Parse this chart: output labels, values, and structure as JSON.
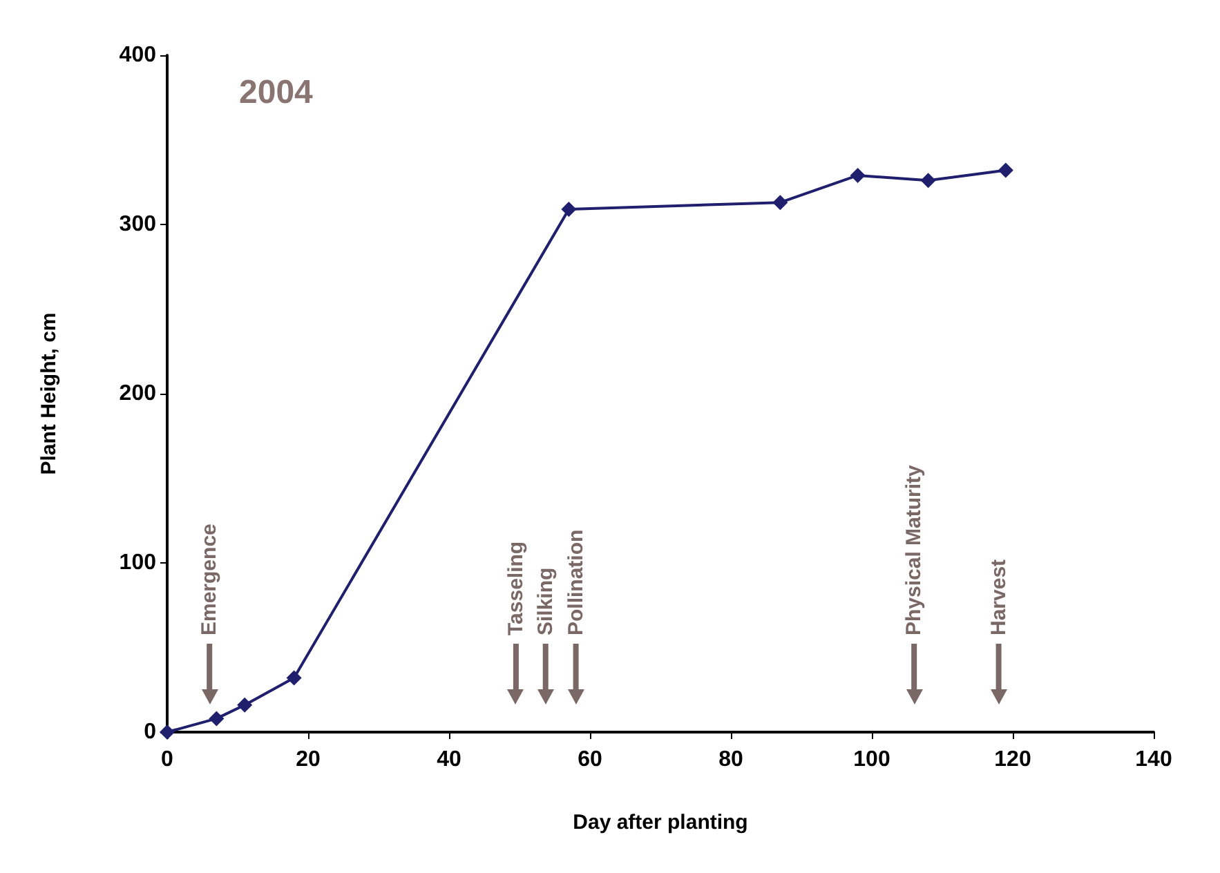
{
  "chart_data": {
    "type": "line",
    "title": "2004",
    "xlabel": "Day after planting",
    "ylabel": "Plant Height, cm",
    "x": [
      0,
      7,
      11,
      18,
      57,
      87,
      98,
      108,
      119
    ],
    "series": [
      {
        "color": "#1f1f6e",
        "values": [
          0,
          8,
          16,
          32,
          309,
          313,
          329,
          326,
          332
        ]
      }
    ],
    "xlim": [
      0,
      140
    ],
    "xticks": [
      0,
      20,
      40,
      60,
      80,
      100,
      120,
      140
    ],
    "ylim": [
      0,
      400
    ],
    "yticks": [
      0,
      100,
      200,
      300,
      400
    ],
    "grid": false,
    "marker": "diamond",
    "line_style": "solid",
    "ref_lines": [
      {
        "axis": "x",
        "value": 6,
        "label": "Emergence"
      },
      {
        "axis": "x",
        "value": 49.5,
        "label": "Tasseling"
      },
      {
        "axis": "x",
        "value": 53.7,
        "label": "Silking"
      },
      {
        "axis": "x",
        "value": 58,
        "label": "Pollination"
      },
      {
        "axis": "x",
        "value": 106,
        "label": "Physical Maturity"
      },
      {
        "axis": "x",
        "value": 118,
        "label": "Harvest"
      }
    ]
  }
}
